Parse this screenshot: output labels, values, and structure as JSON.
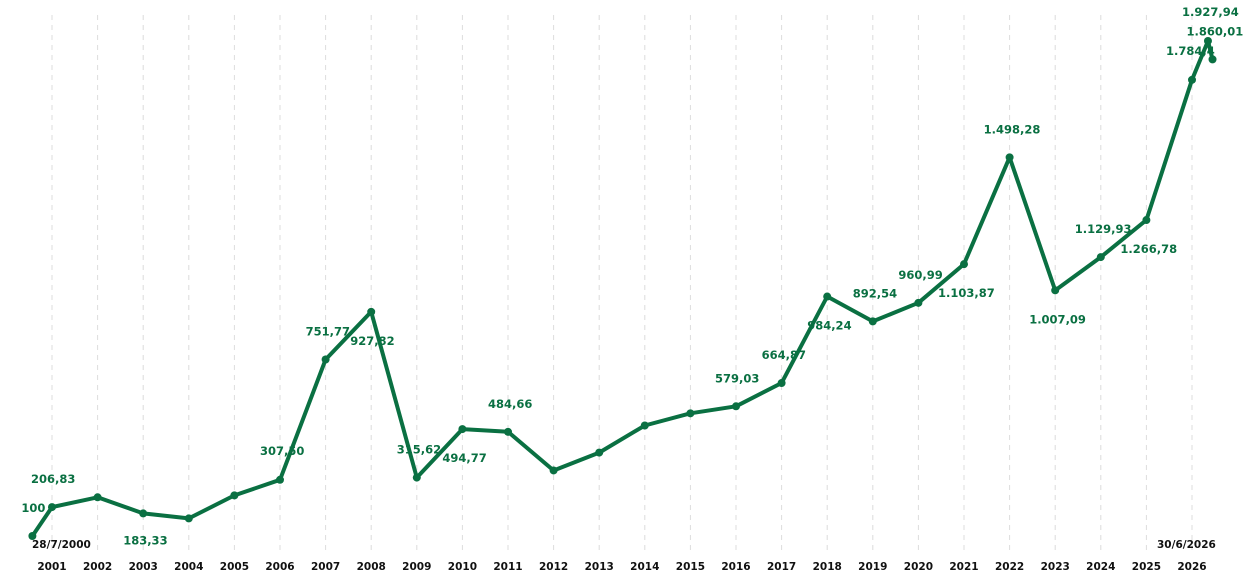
{
  "chart_data": {
    "type": "line",
    "title": "",
    "xlabel": "",
    "ylabel": "",
    "grid": "vertical-dashed",
    "legend": "none",
    "colors": {
      "series": "#0a7042",
      "grid": "#dcdcdc",
      "tick_text": "#111111"
    },
    "start_label": "28/7/2000",
    "end_label": "30/6/2026",
    "x_ticks": [
      2001,
      2002,
      2003,
      2004,
      2005,
      2006,
      2007,
      2008,
      2009,
      2010,
      2011,
      2012,
      2013,
      2014,
      2015,
      2016,
      2017,
      2018,
      2019,
      2020,
      2021,
      2022,
      2023,
      2024,
      2025,
      2026
    ],
    "ylim": [
      100,
      1950
    ],
    "series": [
      {
        "points": [
          {
            "x": 2000.57,
            "y": 100,
            "label": "100"
          },
          {
            "x": 2001.0,
            "y": 206.83,
            "label": "206,83"
          },
          {
            "x": 2002.0,
            "y": 243,
            "label": ""
          },
          {
            "x": 2003.0,
            "y": 183.33,
            "label": "183,33"
          },
          {
            "x": 2004.0,
            "y": 165,
            "label": ""
          },
          {
            "x": 2005.0,
            "y": 250,
            "label": ""
          },
          {
            "x": 2006.0,
            "y": 307.5,
            "label": "307,50"
          },
          {
            "x": 2007.0,
            "y": 751.77,
            "label": "751,77"
          },
          {
            "x": 2008.0,
            "y": 927.82,
            "label": "927,82"
          },
          {
            "x": 2009.0,
            "y": 315.62,
            "label": "315,62"
          },
          {
            "x": 2010.0,
            "y": 494.77,
            "label": "494,77"
          },
          {
            "x": 2011.0,
            "y": 484.66,
            "label": "484,66"
          },
          {
            "x": 2012.0,
            "y": 342,
            "label": ""
          },
          {
            "x": 2013.0,
            "y": 408,
            "label": ""
          },
          {
            "x": 2014.0,
            "y": 508,
            "label": ""
          },
          {
            "x": 2015.0,
            "y": 553,
            "label": ""
          },
          {
            "x": 2016.0,
            "y": 579.03,
            "label": "579,03"
          },
          {
            "x": 2017.0,
            "y": 664.87,
            "label": "664,87"
          },
          {
            "x": 2018.0,
            "y": 984.24,
            "label": "984,24"
          },
          {
            "x": 2019.0,
            "y": 892.54,
            "label": "892,54"
          },
          {
            "x": 2020.0,
            "y": 960.99,
            "label": "960,99"
          },
          {
            "x": 2021.0,
            "y": 1103.87,
            "label": "1.103,87"
          },
          {
            "x": 2022.0,
            "y": 1498.28,
            "label": "1.498,28"
          },
          {
            "x": 2023.0,
            "y": 1007.09,
            "label": "1.007,09"
          },
          {
            "x": 2024.0,
            "y": 1129.93,
            "label": "1.129,93"
          },
          {
            "x": 2025.0,
            "y": 1266.78,
            "label": "1.266,78"
          },
          {
            "x": 2026.0,
            "y": 1784.4,
            "label": "1.784,4"
          },
          {
            "x": 2026.35,
            "y": 1927.94,
            "label": "1.927,94"
          },
          {
            "x": 2026.45,
            "y": 1860.01,
            "label": "1.860,01"
          }
        ]
      }
    ]
  }
}
